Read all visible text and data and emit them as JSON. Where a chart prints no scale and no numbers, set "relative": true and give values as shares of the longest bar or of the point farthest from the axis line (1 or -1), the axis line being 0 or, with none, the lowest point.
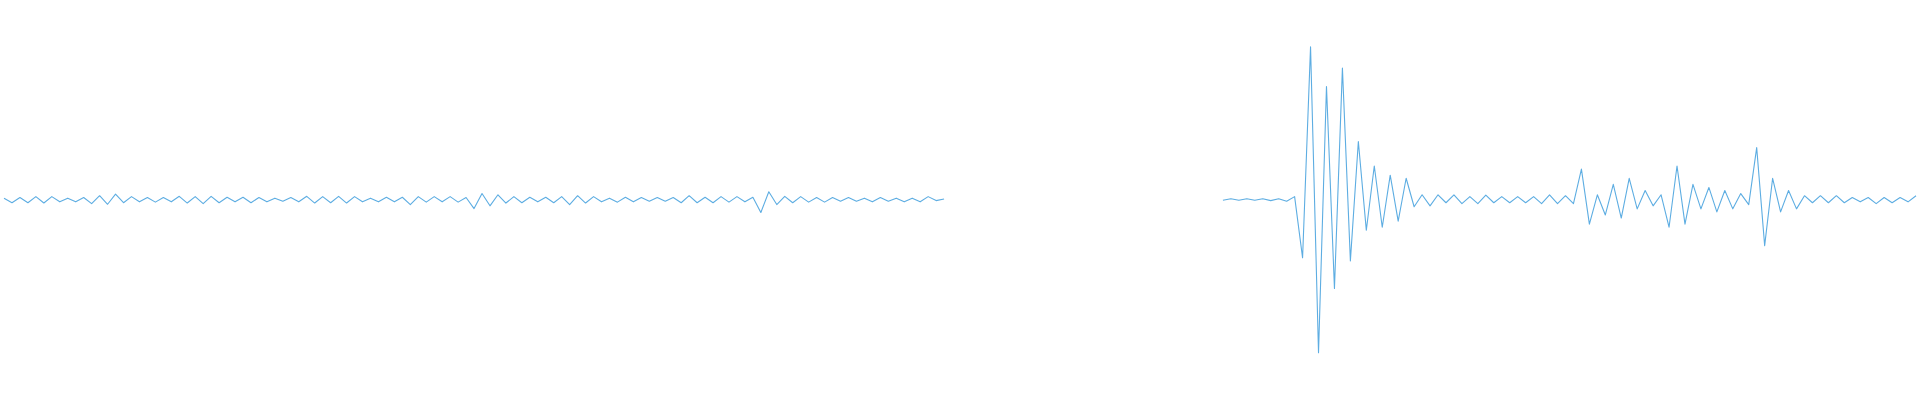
{
  "chart_data": {
    "type": "line",
    "relative": true,
    "categories": [
      null,
      null,
      null,
      null,
      null,
      null,
      null,
      null,
      null,
      null,
      null,
      null,
      null,
      null,
      null,
      null,
      null,
      null,
      null,
      null,
      null,
      null,
      null,
      null,
      null,
      null,
      null,
      null,
      null,
      null,
      null,
      null,
      null,
      null,
      null,
      null,
      null,
      null,
      null,
      null,
      null,
      null,
      null,
      null,
      null,
      null,
      null,
      null,
      null,
      null,
      null,
      null,
      null,
      null,
      null,
      null,
      null,
      null,
      null,
      null,
      null,
      null,
      null,
      null,
      null,
      null,
      null,
      null,
      null,
      null,
      null,
      null,
      null,
      null,
      null,
      null,
      null,
      null,
      null,
      null,
      null,
      null,
      null,
      null,
      null,
      null,
      null,
      null,
      null,
      null,
      null,
      null,
      null,
      null,
      null,
      null,
      null,
      null,
      null,
      null,
      null,
      null,
      null,
      null,
      null,
      null,
      null,
      null,
      null,
      null,
      null,
      null,
      null,
      null,
      null,
      null,
      null,
      null,
      null,
      null,
      null,
      null,
      null,
      null,
      null,
      null,
      null,
      null,
      null,
      null,
      null,
      null,
      null,
      null,
      null,
      null,
      null,
      null,
      null,
      null,
      null,
      null,
      null,
      null,
      null,
      null,
      null,
      null,
      null,
      null,
      null,
      null,
      null,
      null,
      null,
      null,
      null,
      null,
      null,
      null,
      null,
      null,
      null,
      null,
      null,
      null,
      null,
      null,
      null,
      null,
      null,
      null,
      null,
      null,
      null,
      null,
      null,
      null,
      null,
      null,
      null,
      null,
      null,
      null,
      null,
      null,
      null,
      null,
      null,
      null,
      null,
      null,
      null,
      null,
      null,
      null,
      null,
      null,
      null,
      null,
      null,
      null,
      null,
      null,
      null,
      null,
      null,
      null,
      null,
      null,
      null,
      null,
      null,
      null,
      null,
      null,
      null,
      null,
      null,
      null,
      null,
      null,
      null,
      null,
      null,
      null,
      null,
      null,
      null,
      null,
      null,
      null,
      null,
      null,
      null,
      null,
      null,
      null,
      null,
      null,
      null
    ],
    "series": [
      {
        "color": "#5dade2",
        "values": [
          0.505,
          0.49,
          0.507,
          0.49,
          0.51,
          0.489,
          0.51,
          0.493,
          0.505,
          0.493,
          0.507,
          0.487,
          0.513,
          0.485,
          0.518,
          0.49,
          0.51,
          0.493,
          0.507,
          0.492,
          0.507,
          0.493,
          0.511,
          0.489,
          0.51,
          0.487,
          0.511,
          0.49,
          0.508,
          0.493,
          0.508,
          0.49,
          0.507,
          0.493,
          0.505,
          0.495,
          0.507,
          0.493,
          0.511,
          0.489,
          0.51,
          0.49,
          0.511,
          0.489,
          0.51,
          0.493,
          0.505,
          0.493,
          0.508,
          0.493,
          0.508,
          0.484,
          0.51,
          0.492,
          0.51,
          0.493,
          0.51,
          0.492,
          0.507,
          0.471,
          0.52,
          0.48,
          0.516,
          0.489,
          0.51,
          0.49,
          0.508,
          0.493,
          0.508,
          0.49,
          0.51,
          0.484,
          0.513,
          0.489,
          0.51,
          0.493,
          0.505,
          0.492,
          0.508,
          0.493,
          0.507,
          0.495,
          0.507,
          0.495,
          0.507,
          0.49,
          0.513,
          0.49,
          0.508,
          0.49,
          0.51,
          0.492,
          0.51,
          0.493,
          0.508,
          0.458,
          0.526,
          0.484,
          0.511,
          0.49,
          0.51,
          0.492,
          0.507,
          0.492,
          0.507,
          0.495,
          0.507,
          0.495,
          0.505,
          0.493,
          0.507,
          0.495,
          0.505,
          0.493,
          0.505,
          0.493,
          0.51,
          0.497,
          0.502,
          null,
          null,
          null,
          null,
          null,
          null,
          null,
          null,
          null,
          null,
          null,
          null,
          null,
          null,
          null,
          null,
          null,
          null,
          null,
          null,
          null,
          null,
          null,
          null,
          null,
          null,
          null,
          null,
          null,
          null,
          null,
          null,
          null,
          null,
          null,
          null,
          null,
          null,
          null,
          null,
          null,
          null,
          null,
          null,
          null,
          null,
          null,
          null,
          null,
          null,
          null,
          null,
          null,
          null,
          null,
          null,
          null,
          null,
          null,
          null,
          null,
          null,
          null,
          null,
          null,
          null,
          null,
          null,
          null,
          null,
          null,
          null,
          null,
          null,
          null,
          null,
          null,
          null,
          null,
          null,
          null,
          null,
          null,
          null,
          null,
          null,
          null,
          null,
          null,
          null,
          null,
          null,
          null,
          null,
          null,
          null,
          null,
          null,
          null,
          null,
          null,
          null,
          null,
          null,
          null,
          null,
          null,
          null,
          null,
          null,
          null,
          null,
          null,
          null,
          null,
          null,
          null,
          null,
          null,
          null,
          null,
          null
        ]
      },
      {
        "color": "#5dade2",
        "values": [
          null,
          null,
          null,
          null,
          null,
          null,
          null,
          null,
          null,
          null,
          null,
          null,
          null,
          null,
          null,
          null,
          null,
          null,
          null,
          null,
          null,
          null,
          null,
          null,
          null,
          null,
          null,
          null,
          null,
          null,
          null,
          null,
          null,
          null,
          null,
          null,
          null,
          null,
          null,
          null,
          null,
          null,
          null,
          null,
          null,
          null,
          null,
          null,
          null,
          null,
          null,
          null,
          null,
          null,
          null,
          null,
          null,
          null,
          null,
          null,
          null,
          null,
          null,
          null,
          null,
          null,
          null,
          null,
          null,
          null,
          null,
          null,
          null,
          null,
          null,
          null,
          null,
          null,
          null,
          null,
          null,
          null,
          null,
          null,
          null,
          null,
          null,
          null,
          null,
          null,
          null,
          null,
          null,
          null,
          null,
          null,
          null,
          null,
          null,
          null,
          null,
          null,
          null,
          null,
          null,
          null,
          null,
          null,
          null,
          null,
          null,
          null,
          null,
          null,
          null,
          null,
          null,
          null,
          null,
          null,
          null,
          null,
          null,
          null,
          null,
          null,
          null,
          null,
          null,
          null,
          null,
          null,
          null,
          null,
          null,
          null,
          null,
          null,
          null,
          null,
          null,
          null,
          null,
          null,
          null,
          null,
          null,
          null,
          null,
          null,
          null,
          null,
          null,
          0.498,
          0.503,
          0.498,
          0.503,
          0.498,
          0.503,
          0.497,
          0.503,
          0.495,
          0.51,
          0.31,
          1.0,
          0.0,
          0.87,
          0.21,
          0.93,
          0.3,
          0.69,
          0.4,
          0.61,
          0.41,
          0.58,
          0.43,
          0.57,
          0.477,
          0.516,
          0.48,
          0.516,
          0.49,
          0.516,
          0.487,
          0.51,
          0.487,
          0.515,
          0.49,
          0.51,
          0.49,
          0.51,
          0.49,
          0.51,
          0.487,
          0.516,
          0.487,
          0.513,
          0.487,
          0.6,
          0.42,
          0.516,
          0.45,
          0.55,
          0.44,
          0.57,
          0.47,
          0.53,
          0.48,
          0.516,
          0.41,
          0.61,
          0.42,
          0.55,
          0.47,
          0.54,
          0.46,
          0.53,
          0.47,
          0.52,
          0.484,
          0.67,
          0.35,
          0.57,
          0.46,
          0.53,
          0.47,
          0.513,
          0.49,
          0.513,
          0.49,
          0.513,
          0.49,
          0.507,
          0.493,
          0.507,
          0.487,
          0.507,
          0.49,
          0.507,
          0.493,
          0.513
        ]
      }
    ]
  }
}
